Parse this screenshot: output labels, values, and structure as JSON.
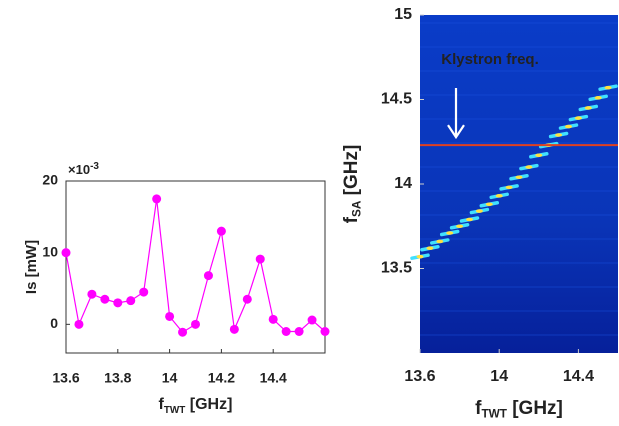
{
  "chart_data": [
    {
      "type": "line",
      "color": "#ff00ff",
      "x": [
        13.6,
        13.65,
        13.7,
        13.75,
        13.8,
        13.85,
        13.9,
        13.95,
        14.0,
        14.05,
        14.1,
        14.15,
        14.2,
        14.25,
        14.3,
        14.35,
        14.4,
        14.45,
        14.5,
        14.55,
        14.6
      ],
      "values": [
        10,
        0,
        4.2,
        3.5,
        3,
        3.3,
        4.5,
        17.5,
        1.1,
        -1.1,
        0,
        6.8,
        13,
        -0.7,
        3.5,
        9.1,
        0.7,
        -1,
        -1,
        0.6,
        -1
      ],
      "xlim": [
        13.6,
        14.6
      ],
      "ylim": [
        -4,
        20
      ],
      "xticks": [
        13.6,
        13.8,
        14,
        14.2,
        14.4
      ],
      "yticks": [
        0,
        10,
        20
      ],
      "x_label": {
        "main": "f",
        "sub": "TWT",
        "unit": " [GHz]"
      },
      "y_label": "Is [mW]",
      "exponent": {
        "base": "×10",
        "power": "-3"
      }
    },
    {
      "type": "spectrogram",
      "color": "#ffe040",
      "x": [
        13.6,
        13.65,
        13.7,
        13.75,
        13.8,
        13.85,
        13.9,
        13.95,
        14.0,
        14.05,
        14.1,
        14.15,
        14.2,
        14.25,
        14.3,
        14.35,
        14.4,
        14.45,
        14.5,
        14.55
      ],
      "values": [
        13.57,
        13.62,
        13.66,
        13.71,
        13.75,
        13.79,
        13.84,
        13.88,
        13.93,
        13.98,
        14.04,
        14.1,
        14.17,
        14.23,
        14.29,
        14.34,
        14.39,
        14.45,
        14.51,
        14.57
      ],
      "xlim": [
        13.6,
        14.6
      ],
      "ylim": [
        13.0,
        15
      ],
      "xticks": [
        13.6,
        14,
        14.4
      ],
      "yticks": [
        13.5,
        14,
        14.5,
        15
      ],
      "x_label": {
        "main": "f",
        "sub": "TWT",
        "unit": " [GHz]"
      },
      "y_label": {
        "main": "f",
        "sub": "SA",
        "unit": " [GHz]"
      },
      "annotation": "Klystron freq.",
      "klystron_freq": 14.23,
      "klystron_color": "#e04020"
    }
  ]
}
